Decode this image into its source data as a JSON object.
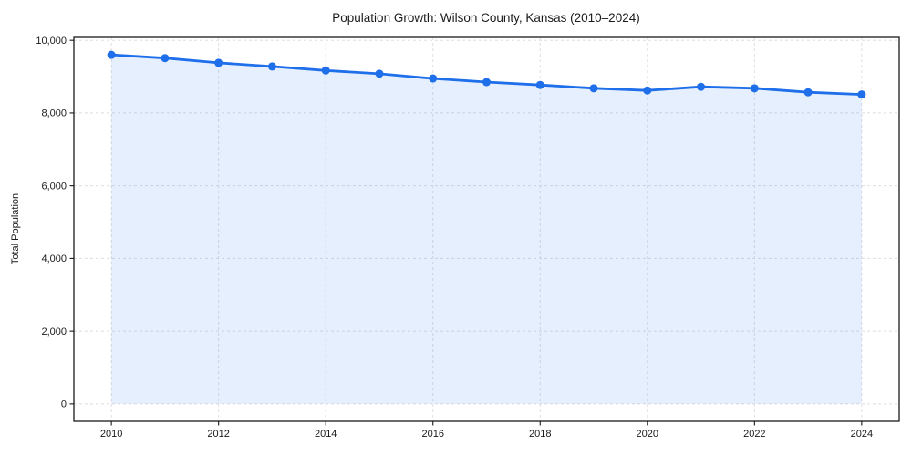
{
  "chart_data": {
    "type": "line",
    "title": "Population Growth: Wilson County, Kansas (2010–2024)",
    "xlabel": "",
    "ylabel": "Total Population",
    "x": [
      2010,
      2011,
      2012,
      2013,
      2014,
      2015,
      2016,
      2017,
      2018,
      2019,
      2020,
      2021,
      2022,
      2023,
      2024
    ],
    "series": [
      {
        "name": "Total Population",
        "values": [
          9600,
          9510,
          9380,
          9280,
          9170,
          9080,
          8950,
          8850,
          8770,
          8680,
          8620,
          8720,
          8680,
          8570,
          8510
        ]
      }
    ],
    "xticks": [
      2010,
      2012,
      2014,
      2016,
      2018,
      2020,
      2022,
      2024
    ],
    "xtick_labels": [
      "2010",
      "2012",
      "2014",
      "2016",
      "2018",
      "2020",
      "2022",
      "2024"
    ],
    "ytick_values": [
      0,
      2000,
      4000,
      6000,
      8000,
      10000
    ],
    "ytick_labels": [
      "0",
      "2,000",
      "4,000",
      "6,000",
      "8,000",
      "10,000"
    ],
    "xlim": [
      2009.3,
      2024.7
    ],
    "ylim": [
      -480,
      10080
    ],
    "fill_baseline": 0,
    "grid": true,
    "grid_style": "dashed",
    "legend": false,
    "marker": "circle",
    "colors": {
      "line": "#1f6feb",
      "marker": "#1f6feb",
      "fill": "#1f6feb",
      "fill_opacity": 0.11,
      "grid": "#dedede",
      "spine": "#1a1a1a",
      "text": "#1a1a1a",
      "background": "#ffffff"
    }
  }
}
